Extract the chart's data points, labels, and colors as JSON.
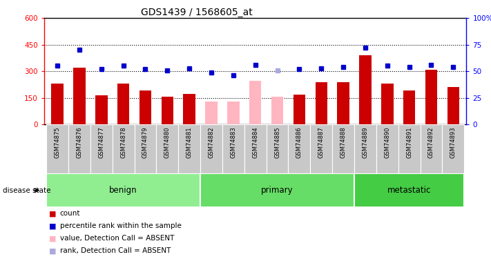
{
  "title": "GDS1439 / 1568605_at",
  "samples": [
    "GSM74875",
    "GSM74876",
    "GSM74877",
    "GSM74878",
    "GSM74879",
    "GSM74880",
    "GSM74881",
    "GSM74882",
    "GSM74883",
    "GSM74884",
    "GSM74885",
    "GSM74886",
    "GSM74887",
    "GSM74888",
    "GSM74889",
    "GSM74890",
    "GSM74891",
    "GSM74892",
    "GSM74893"
  ],
  "bar_values": [
    230,
    320,
    162,
    232,
    192,
    155,
    172,
    128,
    130,
    245,
    155,
    168,
    238,
    238,
    390,
    232,
    192,
    310,
    212
  ],
  "bar_absent": [
    false,
    false,
    false,
    false,
    false,
    false,
    false,
    true,
    true,
    true,
    true,
    false,
    false,
    false,
    false,
    false,
    false,
    false,
    false
  ],
  "rank_pct": [
    55,
    70,
    52,
    55,
    52,
    51,
    53,
    49,
    46,
    56,
    51,
    52,
    53,
    54,
    72,
    55,
    54,
    56,
    54
  ],
  "rank_absent": [
    false,
    false,
    false,
    false,
    false,
    false,
    false,
    false,
    false,
    false,
    true,
    false,
    false,
    false,
    false,
    false,
    false,
    false,
    false
  ],
  "ylim_left": [
    0,
    600
  ],
  "ylim_right": [
    0,
    100
  ],
  "yticks_left": [
    0,
    150,
    300,
    450,
    600
  ],
  "yticks_right": [
    0,
    25,
    50,
    75,
    100
  ],
  "bar_color_normal": "#CC0000",
  "bar_color_absent": "#FFB6C1",
  "rank_color_normal": "#0000CC",
  "rank_color_absent": "#AAAADD",
  "group_labels": [
    "benign",
    "primary",
    "metastatic"
  ],
  "group_colors": [
    "#90EE90",
    "#66DD66",
    "#44CC44"
  ],
  "group_ranges": [
    [
      0,
      6
    ],
    [
      7,
      13
    ],
    [
      14,
      18
    ]
  ],
  "legend_items": [
    {
      "label": "count",
      "color": "#CC0000"
    },
    {
      "label": "percentile rank within the sample",
      "color": "#0000CC"
    },
    {
      "label": "value, Detection Call = ABSENT",
      "color": "#FFB6C1"
    },
    {
      "label": "rank, Detection Call = ABSENT",
      "color": "#AAAADD"
    }
  ]
}
